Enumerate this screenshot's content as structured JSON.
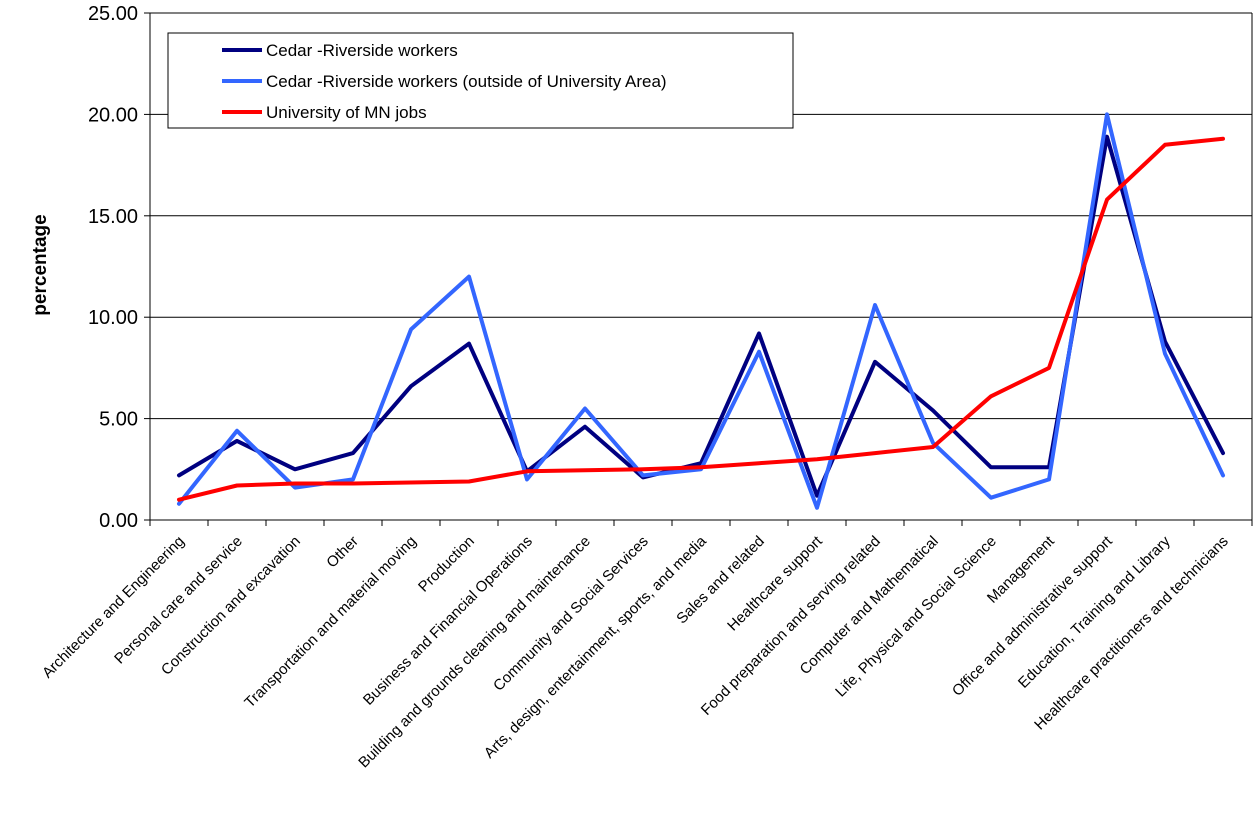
{
  "chart_data": {
    "type": "line",
    "title": "",
    "xlabel": "",
    "ylabel": "percentage",
    "ylim": [
      0,
      25
    ],
    "yticks": [
      "0.00",
      "5.00",
      "10.00",
      "15.00",
      "20.00",
      "25.00"
    ],
    "grid": "horizontal",
    "legend_position": "top-left",
    "categories": [
      "Architecture and Engineering",
      "Personal care and service",
      "Construction and excavation",
      "Other",
      "Transportation and material moving",
      "Production",
      "Business and Financial Operations",
      "Building and grounds cleaning and maintenance",
      "Community and Social Services",
      "Arts, design, entertainment, sports, and media",
      "Sales and related",
      "Healthcare support",
      "Food preparation and serving related",
      "Computer and Mathematical",
      "Life, Physical and Social Science",
      "Management",
      "Office and administrative support",
      "Education, Training and Library",
      "Healthcare practitioners and technicians"
    ],
    "series": [
      {
        "name": "Cedar -Riverside workers",
        "color": "#000080",
        "values": [
          2.2,
          3.9,
          2.5,
          3.3,
          6.6,
          8.7,
          2.4,
          4.6,
          2.1,
          2.8,
          9.2,
          1.2,
          7.8,
          5.4,
          2.6,
          2.6,
          18.9,
          8.8,
          3.3
        ]
      },
      {
        "name": "Cedar -Riverside workers (outside of University Area)",
        "color": "#3366ff",
        "values": [
          0.8,
          4.4,
          1.6,
          2.0,
          9.4,
          12.0,
          2.0,
          5.5,
          2.2,
          2.5,
          8.3,
          0.6,
          10.6,
          3.8,
          1.1,
          2.0,
          20.0,
          8.2,
          2.2
        ]
      },
      {
        "name": "University of MN jobs",
        "color": "#ff0000",
        "values": [
          1.0,
          1.7,
          1.8,
          1.8,
          1.85,
          1.9,
          2.4,
          2.45,
          2.5,
          2.6,
          2.8,
          3.0,
          3.3,
          3.6,
          6.1,
          7.5,
          15.8,
          18.5,
          18.8
        ]
      }
    ]
  }
}
